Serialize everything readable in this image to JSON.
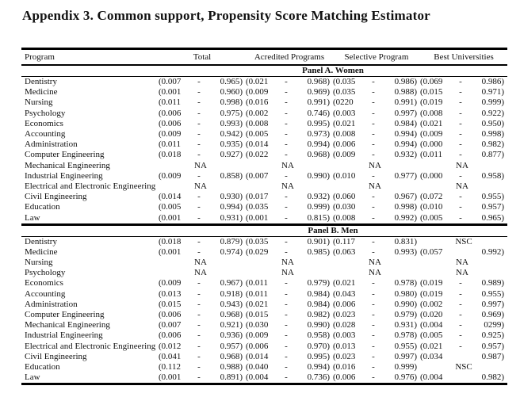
{
  "title": "Appendix 3. Common support, Propensity Score Matching Estimator",
  "headers": {
    "program": "Program",
    "groups": [
      "Total",
      "Acredited Programs",
      "Selective Program",
      "Best Universities"
    ]
  },
  "panels": [
    {
      "label": "Panel A. Women",
      "rows": [
        {
          "program": "Dentistry",
          "cells": [
            [
              "(0.007",
              "-",
              "0.965)"
            ],
            [
              "(0.021",
              "-",
              "0.968)"
            ],
            [
              "(0.035",
              "-",
              "0.986)"
            ],
            [
              "(0.069",
              "-",
              "0.986)"
            ]
          ]
        },
        {
          "program": "Medicine",
          "cells": [
            [
              "(0.001",
              "-",
              "0.960)"
            ],
            [
              "(0.009",
              "-",
              "0.969)"
            ],
            [
              "(0.035",
              "-",
              "0.988)"
            ],
            [
              "(0.015",
              "-",
              "0.971)"
            ]
          ]
        },
        {
          "program": "Nursing",
          "cells": [
            [
              "(0.011",
              "-",
              "0.998)"
            ],
            [
              "(0.016",
              "-",
              "0.991)"
            ],
            [
              "(0220",
              "-",
              "0.991)"
            ],
            [
              "(0.019",
              "-",
              "0.999)"
            ]
          ]
        },
        {
          "program": "Psychology",
          "cells": [
            [
              "(0.006",
              "-",
              "0.975)"
            ],
            [
              "(0.002",
              "-",
              "0.746)"
            ],
            [
              "(0.003",
              "-",
              "0.997)"
            ],
            [
              "(0.008",
              "-",
              "0.922)"
            ]
          ]
        },
        {
          "program": "Economics",
          "cells": [
            [
              "(0.006",
              "-",
              "0.993)"
            ],
            [
              "(0.008",
              "-",
              "0.995)"
            ],
            [
              "(0.021",
              "-",
              "0.984)"
            ],
            [
              "(0.021",
              "-",
              "0.950)"
            ]
          ]
        },
        {
          "program": "Accounting",
          "cells": [
            [
              "(0.009",
              "-",
              "0.942)"
            ],
            [
              "(0.005",
              "-",
              "0.973)"
            ],
            [
              "(0.008",
              "-",
              "0.994)"
            ],
            [
              "(0.009",
              "-",
              "0.998)"
            ]
          ]
        },
        {
          "program": "Administration",
          "cells": [
            [
              "(0.011",
              "-",
              "0.935)"
            ],
            [
              "(0.014",
              "-",
              "0.994)"
            ],
            [
              "(0.006",
              "-",
              "0.994)"
            ],
            [
              "(0.000",
              "-",
              "0.982)"
            ]
          ]
        },
        {
          "program": "Computer Engineering",
          "cells": [
            [
              "(0.018",
              "-",
              "0.927)"
            ],
            [
              "(0.022",
              "-",
              "0.968)"
            ],
            [
              "(0.009",
              "-",
              "0.932)"
            ],
            [
              "(0.011",
              "-",
              "0.877)"
            ]
          ]
        },
        {
          "program": "Mechanical Engineering",
          "cells": [
            "NA",
            "NA",
            "NA",
            "NA"
          ]
        },
        {
          "program": "Industrial Engineering",
          "cells": [
            [
              "(0.009",
              "-",
              "0.858)"
            ],
            [
              "(0.007",
              "-",
              "0.990)"
            ],
            [
              "(0.010",
              "-",
              "0.977)"
            ],
            [
              "(0.000",
              "-",
              "0.958)"
            ]
          ]
        },
        {
          "program": "Electrical and Electronic Engineering",
          "cells": [
            "NA",
            "NA",
            "NA",
            "NA"
          ]
        },
        {
          "program": "Civil Engineering",
          "cells": [
            [
              "(0.014",
              "-",
              "0.930)"
            ],
            [
              "(0.017",
              "-",
              "0.932)"
            ],
            [
              "(0.060",
              "-",
              "0.967)"
            ],
            [
              "(0.072",
              "-",
              "0.955)"
            ]
          ]
        },
        {
          "program": "Education",
          "cells": [
            [
              "(0.005",
              "-",
              "0.994)"
            ],
            [
              "(0.035",
              "-",
              "0.999)"
            ],
            [
              "(0.030",
              "-",
              "0.998)"
            ],
            [
              "(0.010",
              "-",
              "0.957)"
            ]
          ]
        },
        {
          "program": "Law",
          "cells": [
            [
              "(0.001",
              "-",
              "0.931)"
            ],
            [
              "(0.001",
              "-",
              "0.815)"
            ],
            [
              "(0.008",
              "-",
              "0.992)"
            ],
            [
              "(0.005",
              "-",
              "0.965)"
            ]
          ]
        }
      ]
    },
    {
      "label": "Panel B. Men",
      "rows": [
        {
          "program": "Dentistry",
          "cells": [
            [
              "(0.018",
              "-",
              "0.879)"
            ],
            [
              "(0.035",
              "-",
              "0.901)"
            ],
            [
              "(0.117",
              "-",
              "0.831)"
            ],
            "NSC"
          ]
        },
        {
          "program": "Medicine",
          "cells": [
            [
              "(0.001",
              "-",
              "0.974)"
            ],
            [
              "(0.029",
              "-",
              "0.985)"
            ],
            [
              "(0.063",
              "-",
              "0.993)"
            ],
            [
              "(0.057",
              "",
              "0.992)"
            ]
          ]
        },
        {
          "program": "Nursing",
          "cells": [
            "NA",
            "NA",
            "NA",
            "NA"
          ]
        },
        {
          "program": "Psychology",
          "cells": [
            "NA",
            "NA",
            "NA",
            "NA"
          ]
        },
        {
          "program": "Economics",
          "cells": [
            [
              "(0.009",
              "-",
              "0.967)"
            ],
            [
              "(0.011",
              "-",
              "0.979)"
            ],
            [
              "(0.021",
              "-",
              "0.978)"
            ],
            [
              "(0.019",
              "-",
              "0.989)"
            ]
          ]
        },
        {
          "program": "Accounting",
          "cells": [
            [
              "(0.013",
              "-",
              "0.918)"
            ],
            [
              "(0.011",
              "-",
              "0.984)"
            ],
            [
              "(0.043",
              "-",
              "0.980)"
            ],
            [
              "(0.019",
              "-",
              "0.955)"
            ]
          ]
        },
        {
          "program": "Administration",
          "cells": [
            [
              "(0.015",
              "-",
              "0.943)"
            ],
            [
              "(0.021",
              "-",
              "0.984)"
            ],
            [
              "(0.006",
              "-",
              "0.990)"
            ],
            [
              "(0.002",
              "-",
              "0.997)"
            ]
          ]
        },
        {
          "program": "Computer Engineering",
          "cells": [
            [
              "(0.006",
              "-",
              "0.968)"
            ],
            [
              "(0.015",
              "-",
              "0.982)"
            ],
            [
              "(0.023",
              "-",
              "0.979)"
            ],
            [
              "(0.020",
              "-",
              "0.969)"
            ]
          ]
        },
        {
          "program": "Mechanical Engineering",
          "cells": [
            [
              "(0.007",
              "-",
              "0.921)"
            ],
            [
              "(0.030",
              "-",
              "0.990)"
            ],
            [
              "(0.028",
              "-",
              "0.931)"
            ],
            [
              "(0.004",
              "-",
              "0299)"
            ]
          ]
        },
        {
          "program": "Industrial Engineering",
          "cells": [
            [
              "(0.006",
              "-",
              "0.936)"
            ],
            [
              "(0.009",
              "-",
              "0.958)"
            ],
            [
              "(0.003",
              "-",
              "0.978)"
            ],
            [
              "(0.005",
              "-",
              "0.925)"
            ]
          ]
        },
        {
          "program": "Electrical and Electronic Engineering",
          "cells": [
            [
              "(0.012",
              "-",
              "0.957)"
            ],
            [
              "(0.006",
              "-",
              "0.970)"
            ],
            [
              "(0.013",
              "-",
              "0.955)"
            ],
            [
              "(0.021",
              "-",
              "0.957)"
            ]
          ]
        },
        {
          "program": "Civil Engineering",
          "cells": [
            [
              "(0.041",
              "-",
              "0.968)"
            ],
            [
              "(0.014",
              "-",
              "0.995)"
            ],
            [
              "(0.023",
              "-",
              "0.997)"
            ],
            [
              "(0.034",
              "",
              "0.987)"
            ]
          ]
        },
        {
          "program": "Education",
          "cells": [
            [
              "(0.112",
              "-",
              "0.988)"
            ],
            [
              "(0.040",
              "-",
              "0.994)"
            ],
            [
              "(0.016",
              "-",
              "0.999)"
            ],
            "NSC"
          ]
        },
        {
          "program": "Law",
          "cells": [
            [
              "(0.001",
              "-",
              "0.891)"
            ],
            [
              "(0.004",
              "-",
              "0.736)"
            ],
            [
              "(0.006",
              "-",
              "0.976)"
            ],
            [
              "(0.004",
              "",
              "0.982)"
            ]
          ]
        }
      ]
    }
  ]
}
